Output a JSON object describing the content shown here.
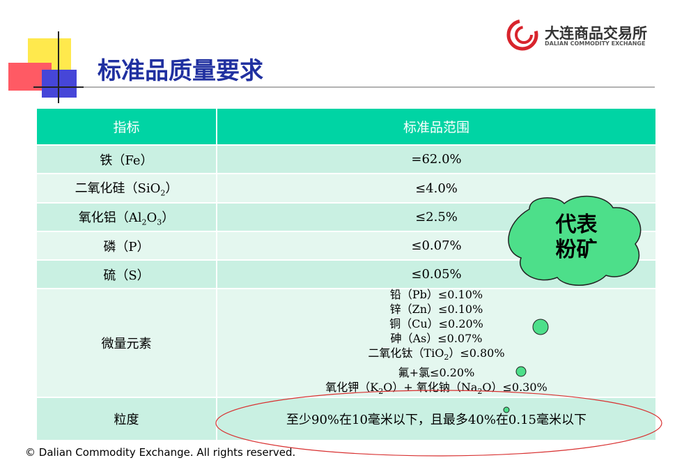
{
  "header": {
    "title": "标准品质量要求",
    "logo_name": "大连商品交易所",
    "logo_subtitle": "DALIAN COMMODITY EXCHANGE"
  },
  "table": {
    "columns": [
      "指标",
      "标准品范围"
    ],
    "rows": [
      [
        [
          "铁（Fe）"
        ],
        [
          "=62.0%"
        ]
      ],
      [
        [
          "二氧化硅（SiO",
          "2",
          "）"
        ],
        [
          "≤4.0%"
        ]
      ],
      [
        [
          "氧化铝（Al",
          "2",
          "O",
          "3",
          "）"
        ],
        [
          "≤2.5%"
        ]
      ],
      [
        [
          "磷（P）"
        ],
        [
          "≤0.07%"
        ]
      ],
      [
        [
          "硫（S）"
        ],
        [
          "≤0.05%"
        ]
      ],
      [
        [
          "微量元素"
        ],
        [
          [
            "铅（Pb）≤0.10%"
          ],
          [
            "锌（Zn）≤0.10%"
          ],
          [
            "铜（Cu）≤0.20%"
          ],
          [
            "砷（As）≤0.07%"
          ],
          [
            "二氧化钛（TiO",
            "2",
            "）≤0.80%"
          ],
          [
            "氟+氯≤0.20%"
          ],
          [
            "氧化钾（K",
            "2",
            "O）+ 氧化钠（Na",
            "2",
            "O）≤0.30%"
          ]
        ]
      ],
      [
        [
          "粒度"
        ],
        [
          "至少90%在10毫米以下，且最多40%在0.15毫米以下"
        ]
      ]
    ]
  },
  "callout": {
    "lines": [
      "代表",
      "粉矿"
    ]
  },
  "footer": "© Dalian Commodity Exchange. All rights reserved."
}
